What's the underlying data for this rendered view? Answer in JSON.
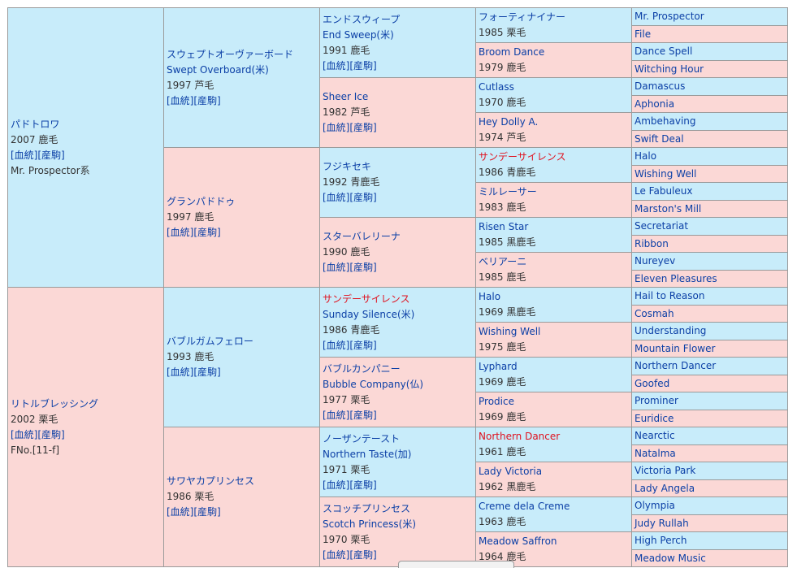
{
  "links": {
    "bloodline": "[血統]",
    "offspring": "[産駒]"
  },
  "g1": [
    {
      "name": "パドトロワ",
      "info": "2007 鹿毛",
      "extra": "Mr. Prospector系"
    },
    {
      "name": "リトルブレッシング",
      "info": "2002 栗毛",
      "extra": "FNo.[11-f]"
    }
  ],
  "g2": [
    {
      "name": "スウェプトオーヴァーボード",
      "en": "Swept Overboard(米)",
      "info": "1997 芦毛"
    },
    {
      "name": "グランパドドゥ",
      "info": "1997 鹿毛"
    },
    {
      "name": "バブルガムフェロー",
      "info": "1993 鹿毛"
    },
    {
      "name": "サワヤカプリンセス",
      "info": "1986 栗毛"
    }
  ],
  "g3": [
    {
      "name": "エンドスウィープ",
      "en": "End Sweep(米)",
      "info": "1991 鹿毛"
    },
    {
      "name": "Sheer Ice",
      "info": "1982 芦毛"
    },
    {
      "name": "フジキセキ",
      "info": "1992 青鹿毛"
    },
    {
      "name": "スターバレリーナ",
      "info": "1990 鹿毛"
    },
    {
      "name": "サンデーサイレンス",
      "en": "Sunday Silence(米)",
      "info": "1986 青鹿毛"
    },
    {
      "name": "バブルカンパニー",
      "en": "Bubble Company(仏)",
      "info": "1977 栗毛"
    },
    {
      "name": "ノーザンテースト",
      "en": "Northern Taste(加)",
      "info": "1971 栗毛"
    },
    {
      "name": "スコッチプリンセス",
      "en": "Scotch Princess(米)",
      "info": "1970 栗毛"
    }
  ],
  "g4": [
    {
      "name": "フォーティナイナー",
      "info": "1985 栗毛"
    },
    {
      "name": "Broom Dance",
      "info": "1979 鹿毛"
    },
    {
      "name": "Cutlass",
      "info": "1970 鹿毛"
    },
    {
      "name": "Hey Dolly A.",
      "info": "1974 芦毛"
    },
    {
      "name": "サンデーサイレンス",
      "info": "1986 青鹿毛"
    },
    {
      "name": "ミルレーサー",
      "info": "1983 鹿毛"
    },
    {
      "name": "Risen Star",
      "info": "1985 黒鹿毛"
    },
    {
      "name": "ベリアーニ",
      "info": "1985 鹿毛"
    },
    {
      "name": "Halo",
      "info": "1969 黒鹿毛"
    },
    {
      "name": "Wishing Well",
      "info": "1975 鹿毛"
    },
    {
      "name": "Lyphard",
      "info": "1969 鹿毛"
    },
    {
      "name": "Prodice",
      "info": "1969 鹿毛"
    },
    {
      "name": "Northern Dancer",
      "info": "1961 鹿毛"
    },
    {
      "name": "Lady Victoria",
      "info": "1962 黒鹿毛"
    },
    {
      "name": "Creme dela Creme",
      "info": "1963 鹿毛"
    },
    {
      "name": "Meadow Saffron",
      "info": "1964 鹿毛"
    }
  ],
  "g5": [
    "Mr. Prospector",
    "File",
    "Dance Spell",
    "Witching Hour",
    "Damascus",
    "Aphonia",
    "Ambehaving",
    "Swift Deal",
    "Halo",
    "Wishing Well",
    "Le Fabuleux",
    "Marston's Mill",
    "Secretariat",
    "Ribbon",
    "Nureyev",
    "Eleven Pleasures",
    "Hail to Reason",
    "Cosmah",
    "Understanding",
    "Mountain Flower",
    "Northern Dancer",
    "Goofed",
    "Prominer",
    "Euridice",
    "Nearctic",
    "Natalma",
    "Victoria Park",
    "Lady Angela",
    "Olympia",
    "Judy Rullah",
    "High Perch",
    "Meadow Music"
  ],
  "colors": {
    "sire_bg": "#c8ecfa",
    "dam_bg": "#fbd8d6",
    "link": "#0b3fa6",
    "highlight": "#e0121f",
    "border": "#9a9a9a"
  }
}
